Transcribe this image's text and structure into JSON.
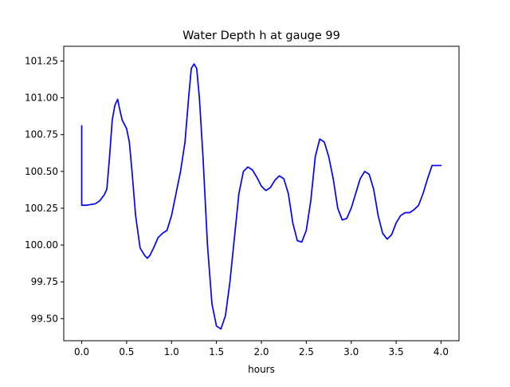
{
  "chart_data": {
    "type": "line",
    "title": "Water Depth h at gauge 99",
    "xlabel": "hours",
    "ylabel": "",
    "xlim": [
      -0.2,
      4.2
    ],
    "ylim": [
      99.35,
      101.35
    ],
    "xticks": [
      0.0,
      0.5,
      1.0,
      1.5,
      2.0,
      2.5,
      3.0,
      3.5,
      4.0
    ],
    "xtick_labels": [
      "0.0",
      "0.5",
      "1.0",
      "1.5",
      "2.0",
      "2.5",
      "3.0",
      "3.5",
      "4.0"
    ],
    "yticks": [
      99.5,
      99.75,
      100.0,
      100.25,
      100.5,
      100.75,
      101.0,
      101.25
    ],
    "ytick_labels": [
      "99.50",
      "99.75",
      "100.00",
      "100.25",
      "100.50",
      "100.75",
      "101.00",
      "101.25"
    ],
    "grid": false,
    "series": [
      {
        "color": "#0000ff",
        "x": [
          0.0,
          0.0,
          0.05,
          0.1,
          0.15,
          0.2,
          0.25,
          0.28,
          0.31,
          0.34,
          0.37,
          0.4,
          0.42,
          0.45,
          0.5,
          0.53,
          0.56,
          0.6,
          0.65,
          0.7,
          0.73,
          0.76,
          0.8,
          0.85,
          0.9,
          0.95,
          1.0,
          1.05,
          1.1,
          1.15,
          1.19,
          1.22,
          1.25,
          1.28,
          1.31,
          1.35,
          1.4,
          1.45,
          1.5,
          1.55,
          1.6,
          1.65,
          1.7,
          1.75,
          1.8,
          1.85,
          1.9,
          1.95,
          2.0,
          2.05,
          2.1,
          2.15,
          2.2,
          2.25,
          2.3,
          2.35,
          2.4,
          2.45,
          2.5,
          2.55,
          2.6,
          2.65,
          2.7,
          2.75,
          2.8,
          2.85,
          2.9,
          2.95,
          3.0,
          3.05,
          3.1,
          3.15,
          3.2,
          3.25,
          3.3,
          3.35,
          3.4,
          3.45,
          3.5,
          3.55,
          3.6,
          3.65,
          3.7,
          3.75,
          3.8,
          3.85,
          3.9,
          3.95,
          4.0
        ],
        "y": [
          100.81,
          100.27,
          100.27,
          100.275,
          100.28,
          100.3,
          100.34,
          100.38,
          100.6,
          100.85,
          100.95,
          100.99,
          100.93,
          100.85,
          100.79,
          100.7,
          100.5,
          100.2,
          99.98,
          99.93,
          99.91,
          99.93,
          99.98,
          100.05,
          100.08,
          100.1,
          100.2,
          100.35,
          100.5,
          100.7,
          101.0,
          101.2,
          101.23,
          101.2,
          101.0,
          100.6,
          100.0,
          99.6,
          99.45,
          99.43,
          99.52,
          99.75,
          100.05,
          100.35,
          100.5,
          100.53,
          100.51,
          100.46,
          100.4,
          100.37,
          100.39,
          100.44,
          100.47,
          100.45,
          100.35,
          100.15,
          100.03,
          100.02,
          100.1,
          100.3,
          100.6,
          100.72,
          100.7,
          100.6,
          100.45,
          100.25,
          100.17,
          100.18,
          100.25,
          100.35,
          100.45,
          100.5,
          100.48,
          100.38,
          100.2,
          100.08,
          100.04,
          100.07,
          100.15,
          100.2,
          100.22,
          100.22,
          100.24,
          100.27,
          100.35,
          100.45,
          100.54,
          100.54,
          100.54
        ]
      }
    ]
  }
}
